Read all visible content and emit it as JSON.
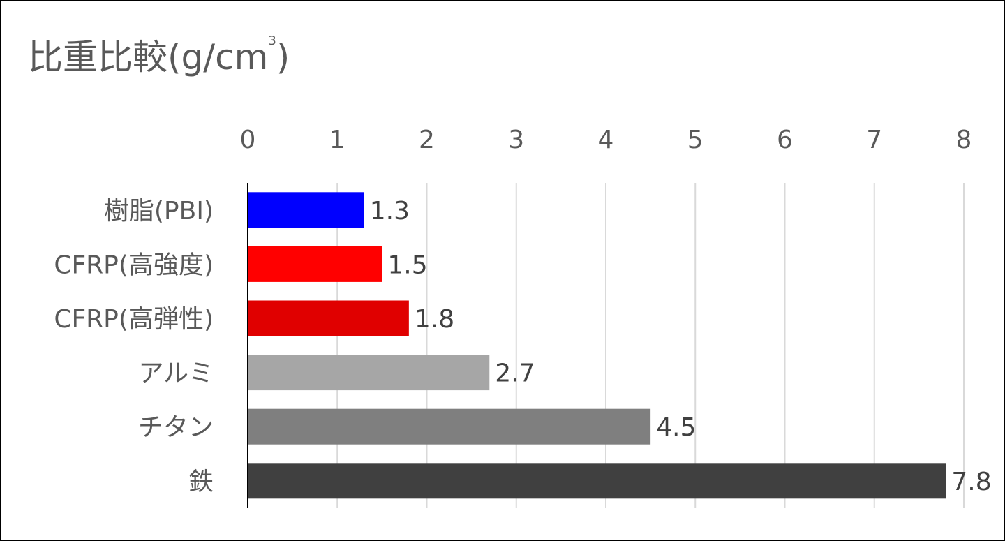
{
  "chart_data": {
    "type": "bar",
    "orientation": "horizontal",
    "title": "比重比較(g/c㎥)",
    "title_main": "比重比較(g/c",
    "title_unit": "m",
    "title_sup": "3",
    "title_end": ")",
    "xlabel": "",
    "ylabel": "",
    "categories": [
      "樹脂(PBI)",
      "CFRP(高強度)",
      "CFRP(高弾性)",
      "アルミ",
      "チタン",
      "鉄"
    ],
    "values": [
      1.3,
      1.5,
      1.8,
      2.7,
      4.5,
      7.8
    ],
    "value_labels": [
      "1.3",
      "1.5",
      "1.8",
      "2.7",
      "4.5",
      "7.8"
    ],
    "bar_colors": [
      "#0000FF",
      "#FF0000",
      "#E00000",
      "#A6A6A6",
      "#7F7F7F",
      "#404040"
    ],
    "xlim": [
      0,
      8
    ],
    "x_ticks": [
      "0",
      "1",
      "2",
      "3",
      "4",
      "5",
      "6",
      "7",
      "8"
    ],
    "x_axis_position": "top",
    "grid": true,
    "grid_color": "#D9D9D9",
    "legend": false
  }
}
